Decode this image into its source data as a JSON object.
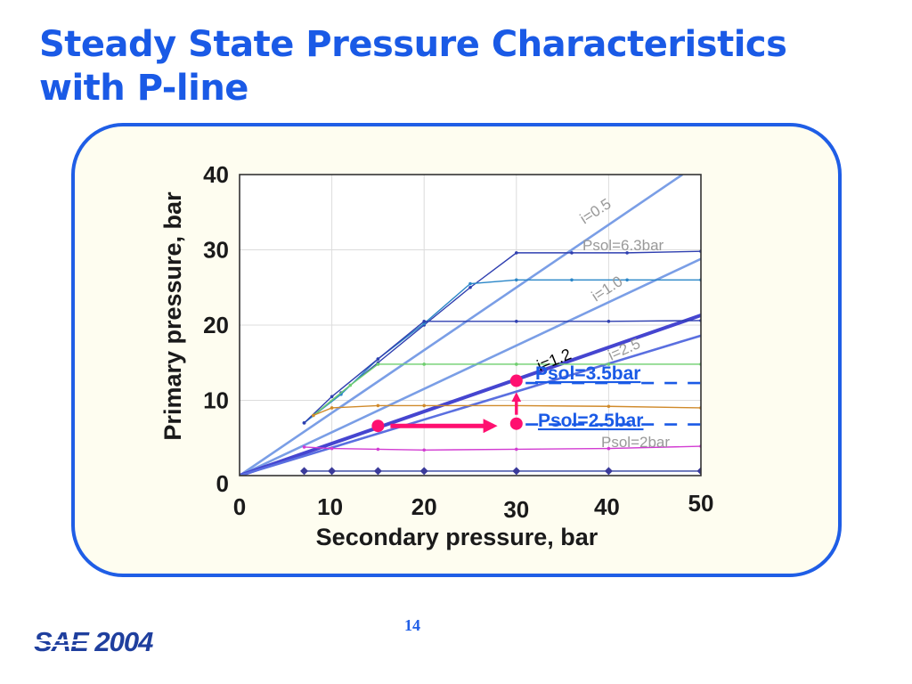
{
  "slide": {
    "title_lines": [
      "Steady State Pressure Characteristics",
      "with P-line"
    ],
    "page_number": "14",
    "logo_text": "SAE 2004"
  },
  "colors": {
    "title": "#1a5ae6",
    "panel_border": "#1f5ee6",
    "panel_fill": "#fefdf0",
    "marker": "#ff1070",
    "psol_label": "#1a5ae6",
    "gray_label": "#999999"
  },
  "chart_data": {
    "type": "line",
    "title": "",
    "xlabel": "Secondary pressure, bar",
    "ylabel": "Primary pressure, bar",
    "xlim": [
      0,
      50
    ],
    "ylim": [
      0,
      40
    ],
    "x_ticks": [
      "0",
      "10",
      "20",
      "30",
      "40",
      "50"
    ],
    "y_ticks": [
      "0",
      "10",
      "20",
      "30",
      "40"
    ],
    "grid": true,
    "legend": "none",
    "p_lines": [
      {
        "label": "i=0.5",
        "x": [
          0,
          48
        ],
        "y": [
          0,
          40
        ],
        "color": "#7a9ee6",
        "width": 2.6
      },
      {
        "label": "i=1.0",
        "x": [
          0,
          50
        ],
        "y": [
          0,
          28.8
        ],
        "color": "#7a9ee6",
        "width": 2.6
      },
      {
        "label": "i=1.2",
        "x": [
          0,
          50
        ],
        "y": [
          0,
          21.3
        ],
        "color": "#4545d0",
        "width": 4
      },
      {
        "label": "i=2.5",
        "x": [
          0,
          50
        ],
        "y": [
          0,
          18.6
        ],
        "color": "#5a6fe0",
        "width": 2.6
      }
    ],
    "series": [
      {
        "x": [
          7,
          11,
          15,
          20,
          25,
          30,
          36,
          42,
          50
        ],
        "y": [
          7,
          11,
          15,
          20,
          25,
          29.6,
          29.6,
          29.6,
          29.8
        ],
        "color": "#2f3fb0"
      },
      {
        "x": [
          7,
          11,
          15,
          20,
          25,
          30,
          36,
          42,
          50
        ],
        "y": [
          7,
          10.8,
          15.5,
          20.2,
          25.5,
          26,
          26,
          26,
          26
        ],
        "color": "#2a86c8"
      },
      {
        "x": [
          7,
          10,
          15,
          20,
          30,
          40,
          50
        ],
        "y": [
          7,
          10.5,
          15.5,
          20.5,
          20.5,
          20.5,
          20.6
        ],
        "color": "#2f3fb0"
      },
      {
        "x": [
          8,
          12,
          15,
          20,
          30,
          40,
          50
        ],
        "y": [
          8,
          12,
          14.8,
          14.8,
          14.8,
          14.8,
          14.8
        ],
        "color": "#6fcf6f"
      },
      {
        "x": [
          8,
          10,
          15,
          20,
          30,
          40,
          50
        ],
        "y": [
          8,
          9,
          9.3,
          9.3,
          9.3,
          9.2,
          9
        ],
        "color": "#d08a2a"
      },
      {
        "x": [
          7,
          10,
          15,
          20,
          30,
          40,
          50
        ],
        "y": [
          3.8,
          3.6,
          3.5,
          3.4,
          3.5,
          3.6,
          3.9
        ],
        "color": "#d23cd2"
      },
      {
        "x": [
          7,
          10,
          15,
          20,
          30,
          40,
          50
        ],
        "y": [
          0.6,
          0.6,
          0.6,
          0.6,
          0.6,
          0.6,
          0.6
        ],
        "color": "#2f3f9f"
      }
    ],
    "annotations": [
      {
        "text": "i=0.5",
        "color": "#999999"
      },
      {
        "text": "Psol=6.3bar",
        "color": "#999999"
      },
      {
        "text": "i=1.0",
        "color": "#999999"
      },
      {
        "text": "i=1.2",
        "color": "#000000"
      },
      {
        "text": "i=2.5",
        "color": "#999999"
      },
      {
        "text": "Psol=3.5bar",
        "color": "#1a5ae6"
      },
      {
        "text": "Psol=2.5bar",
        "color": "#1a5ae6"
      },
      {
        "text": "Psol=2bar",
        "color": "#999999"
      }
    ],
    "operating_points": [
      {
        "x": 15,
        "y": 6.6
      },
      {
        "x": 30,
        "y": 6.9
      },
      {
        "x": 30,
        "y": 12.6
      }
    ],
    "psol_levels": [
      {
        "label": "Psol=3.5bar",
        "y": 12.3,
        "x_start": 31
      },
      {
        "label": "Psol=2.5bar",
        "y": 6.8,
        "x_start": 31
      }
    ]
  }
}
